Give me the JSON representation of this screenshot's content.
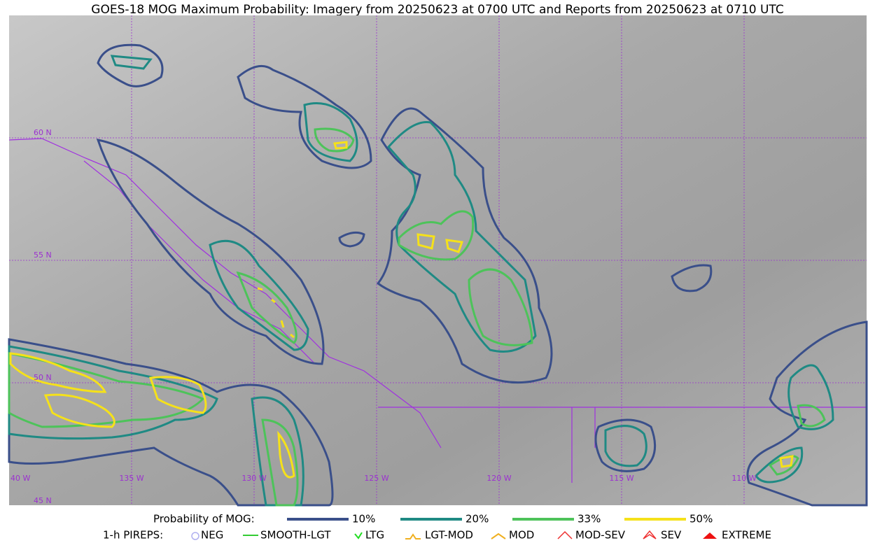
{
  "header": {
    "title": "GOES-18 MOG Maximum Probability: Imagery from 20250623 at 0700 UTC and Reports from 20250623 at 0710 UTC"
  },
  "map": {
    "lat_labels": [
      "60 N",
      "55 N",
      "50 N",
      "45 N"
    ],
    "lon_labels": [
      "40 W",
      "135 W",
      "130 W",
      "125 W",
      "120 W",
      "115 W",
      "110 W"
    ]
  },
  "legend": {
    "probability": {
      "label": "Probability of MOG:",
      "items": [
        {
          "label": "10%",
          "color": "#3a4f8a"
        },
        {
          "label": "20%",
          "color": "#1f8a84"
        },
        {
          "label": "33%",
          "color": "#4dc35a"
        },
        {
          "label": "50%",
          "color": "#f5e11a"
        }
      ]
    },
    "pireps": {
      "label": "1-h PIREPS:",
      "items": [
        {
          "label": "NEG",
          "color": "#b0b0f0"
        },
        {
          "label": "SMOOTH-LGT",
          "color": "#33cc33"
        },
        {
          "label": "LTG",
          "color": "#22dd22"
        },
        {
          "label": "LGT-MOD",
          "color": "#f0b020"
        },
        {
          "label": "MOD",
          "color": "#f0b020"
        },
        {
          "label": "MOD-SEV",
          "color": "#ee3333"
        },
        {
          "label": "SEV",
          "color": "#ee3333"
        },
        {
          "label": "EXTREME",
          "color": "#ee1111"
        }
      ]
    }
  }
}
